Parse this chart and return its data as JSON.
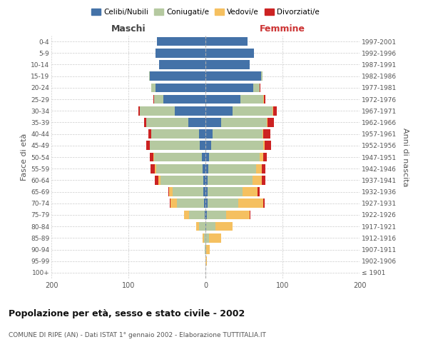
{
  "age_groups": [
    "100+",
    "95-99",
    "90-94",
    "85-89",
    "80-84",
    "75-79",
    "70-74",
    "65-69",
    "60-64",
    "55-59",
    "50-54",
    "45-49",
    "40-44",
    "35-39",
    "30-34",
    "25-29",
    "20-24",
    "15-19",
    "10-14",
    "5-9",
    "0-4"
  ],
  "birth_years": [
    "≤ 1901",
    "1902-1906",
    "1907-1911",
    "1912-1916",
    "1917-1921",
    "1922-1926",
    "1927-1931",
    "1932-1936",
    "1937-1941",
    "1942-1946",
    "1947-1951",
    "1952-1956",
    "1957-1961",
    "1962-1966",
    "1967-1971",
    "1972-1976",
    "1977-1981",
    "1982-1986",
    "1987-1991",
    "1992-1996",
    "1997-2001"
  ],
  "maschi_celibi": [
    0,
    0,
    0,
    0,
    0,
    1,
    2,
    3,
    3,
    4,
    5,
    7,
    8,
    22,
    40,
    55,
    65,
    72,
    60,
    65,
    63
  ],
  "maschi_coniugati": [
    0,
    0,
    1,
    2,
    8,
    20,
    35,
    40,
    55,
    60,
    62,
    65,
    62,
    55,
    45,
    12,
    5,
    1,
    0,
    0,
    0
  ],
  "maschi_vedovi": [
    0,
    0,
    0,
    2,
    4,
    7,
    8,
    4,
    3,
    2,
    1,
    0,
    0,
    0,
    0,
    0,
    0,
    0,
    0,
    0,
    0
  ],
  "maschi_divorziati": [
    0,
    0,
    0,
    0,
    0,
    0,
    1,
    1,
    5,
    5,
    4,
    5,
    4,
    3,
    2,
    1,
    0,
    0,
    0,
    0,
    0
  ],
  "femmine_nubili": [
    0,
    0,
    0,
    0,
    1,
    2,
    3,
    3,
    3,
    4,
    5,
    7,
    9,
    20,
    35,
    45,
    62,
    72,
    57,
    63,
    55
  ],
  "femmine_coniugate": [
    0,
    0,
    1,
    5,
    12,
    25,
    40,
    45,
    58,
    62,
    65,
    68,
    65,
    60,
    52,
    30,
    8,
    2,
    0,
    0,
    0
  ],
  "femmine_vedove": [
    0,
    2,
    5,
    15,
    22,
    30,
    32,
    20,
    12,
    7,
    5,
    2,
    1,
    1,
    1,
    1,
    0,
    0,
    0,
    0,
    0
  ],
  "femmine_divorziate": [
    0,
    0,
    0,
    0,
    0,
    1,
    2,
    2,
    5,
    5,
    5,
    8,
    9,
    8,
    5,
    2,
    1,
    0,
    0,
    0,
    0
  ],
  "colors": {
    "celibi_nubili": "#4472a8",
    "coniugati": "#b5c9a0",
    "vedovi": "#f5c060",
    "divorziati": "#cc2222"
  },
  "title": "Popolazione per età, sesso e stato civile - 2002",
  "subtitle": "COMUNE DI RIPE (AN) - Dati ISTAT 1° gennaio 2002 - Elaborazione TUTTITALIA.IT",
  "xlabel_left": "Maschi",
  "xlabel_right": "Femmine",
  "ylabel_left": "Fasce di età",
  "ylabel_right": "Anni di nascita",
  "legend_labels": [
    "Celibi/Nubili",
    "Coniugati/e",
    "Vedovi/e",
    "Divorziati/e"
  ],
  "background_color": "#ffffff",
  "grid_color": "#cccccc"
}
